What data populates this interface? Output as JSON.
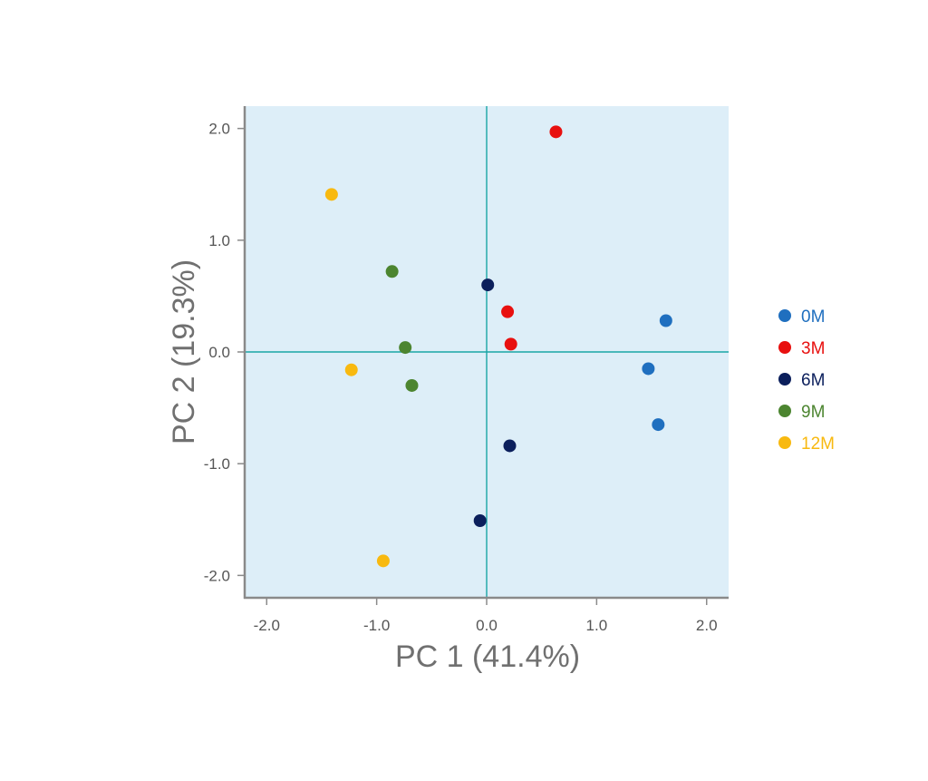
{
  "chart_data": {
    "type": "scatter",
    "title": "",
    "xlabel": "PC 1 (41.4%)",
    "ylabel": "PC 2 (19.3%)",
    "xlim": [
      -2.2,
      2.2
    ],
    "ylim": [
      -2.2,
      2.2
    ],
    "x_ticks": [
      -2.0,
      -1.0,
      0.0,
      1.0,
      2.0
    ],
    "y_ticks": [
      -2.0,
      -1.0,
      0.0,
      1.0,
      2.0
    ],
    "x_tick_labels": [
      "-2.0",
      "-1.0",
      "0.0",
      "1.0",
      "2.0"
    ],
    "y_tick_labels": [
      "-2.0",
      "-1.0",
      "0.0",
      "1.0",
      "2.0"
    ],
    "grid": false,
    "reference_lines": {
      "x": 0.0,
      "y": 0.0
    },
    "plot_background": "#ddeef8",
    "legend_position": "right",
    "series": [
      {
        "name": "0M",
        "color": "#1f6fbf",
        "points": [
          [
            1.63,
            0.28
          ],
          [
            1.47,
            -0.15
          ],
          [
            1.56,
            -0.65
          ]
        ]
      },
      {
        "name": "3M",
        "color": "#e8100f",
        "points": [
          [
            0.63,
            1.97
          ],
          [
            0.19,
            0.36
          ],
          [
            0.22,
            0.07
          ]
        ]
      },
      {
        "name": "6M",
        "color": "#0b1f5c",
        "points": [
          [
            0.01,
            0.6
          ],
          [
            0.21,
            -0.84
          ],
          [
            -0.06,
            -1.51
          ]
        ]
      },
      {
        "name": "9M",
        "color": "#4c8530",
        "points": [
          [
            -0.86,
            0.72
          ],
          [
            -0.74,
            0.04
          ],
          [
            -0.68,
            -0.3
          ]
        ]
      },
      {
        "name": "12M",
        "color": "#f8b910",
        "points": [
          [
            -1.41,
            1.41
          ],
          [
            -1.23,
            -0.16
          ],
          [
            -0.94,
            -1.87
          ]
        ]
      }
    ]
  }
}
